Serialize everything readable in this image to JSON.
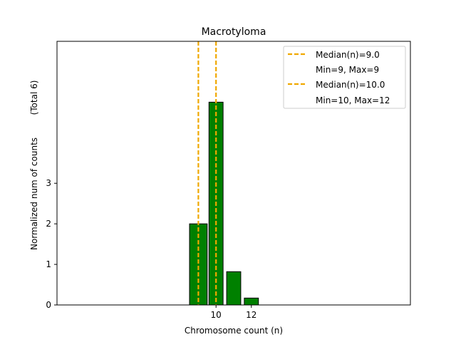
{
  "chart_data": {
    "type": "bar",
    "title": "Macrotyloma",
    "xlabel": "Chromosome count (n)",
    "ylabel": "Normalized num of counts",
    "ylabel_total": "(Total 6)",
    "xlim": [
      1,
      21
    ],
    "ylim": [
      0,
      6.5
    ],
    "x_ticks": [
      10,
      12
    ],
    "y_ticks": [
      0,
      1,
      2,
      3
    ],
    "bars": [
      {
        "x": 9,
        "value": 2.0,
        "width": 1.0
      },
      {
        "x": 10,
        "value": 5.0,
        "width": 0.8
      },
      {
        "x": 11,
        "value": 0.82,
        "width": 0.8
      },
      {
        "x": 12,
        "value": 0.17,
        "width": 0.8
      }
    ],
    "bar_color": "#008000",
    "median_lines": [
      {
        "x": 9.0,
        "label": "Median(n)=9.0",
        "range_label": "Min=9, Max=9"
      },
      {
        "x": 10.0,
        "label": "Median(n)=10.0",
        "range_label": "Min=10, Max=12"
      }
    ],
    "median_color": "#f0a800",
    "legend_position": "top-right",
    "grid": false
  }
}
